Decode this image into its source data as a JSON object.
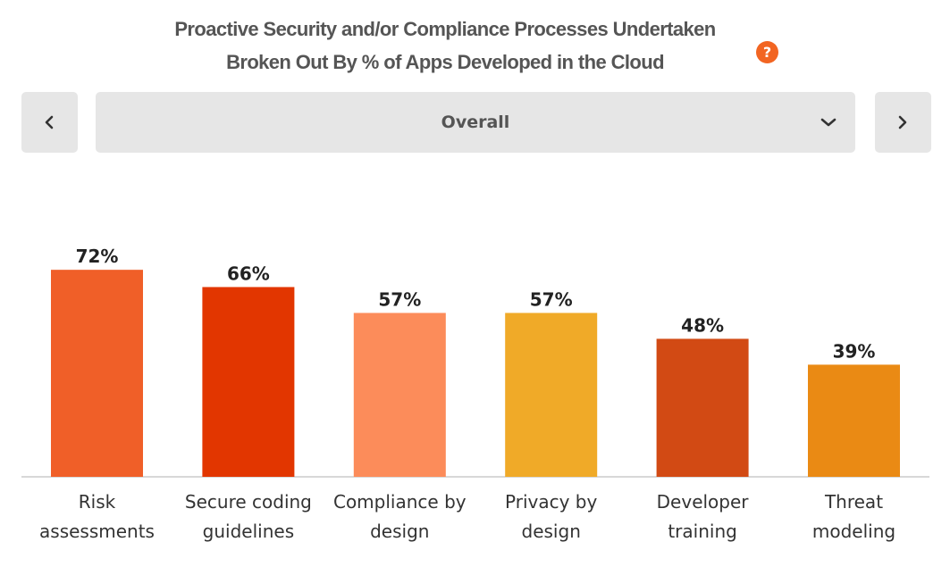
{
  "header": {
    "title_line1": "Proactive Security and/or Compliance Processes Undertaken",
    "title_line2": "Broken Out By % of Apps Developed in the Cloud",
    "help_icon": "?"
  },
  "filter": {
    "selected": "Overall",
    "prev_icon": "chevron-left-icon",
    "next_icon": "chevron-right-icon",
    "dropdown_icon": "chevron-down-icon"
  },
  "chart_data": {
    "type": "bar",
    "categories": [
      [
        "Risk",
        "assessments"
      ],
      [
        "Secure coding",
        "guidelines"
      ],
      [
        "Compliance by",
        "design"
      ],
      [
        "Privacy by",
        "design"
      ],
      [
        "Developer",
        "training"
      ],
      [
        "Threat",
        "modeling"
      ]
    ],
    "values": [
      72,
      66,
      57,
      57,
      48,
      39
    ],
    "data_labels": [
      "72%",
      "66%",
      "57%",
      "57%",
      "48%",
      "39%"
    ],
    "colors": [
      "#f05f28",
      "#e23600",
      "#fc8c5a",
      "#f0aa28",
      "#d24a14",
      "#ea8a14"
    ],
    "ylim": [
      0,
      100
    ],
    "grid": false,
    "axis_color": "#cccccc",
    "label_color": "#222222",
    "category_color": "#333333"
  }
}
